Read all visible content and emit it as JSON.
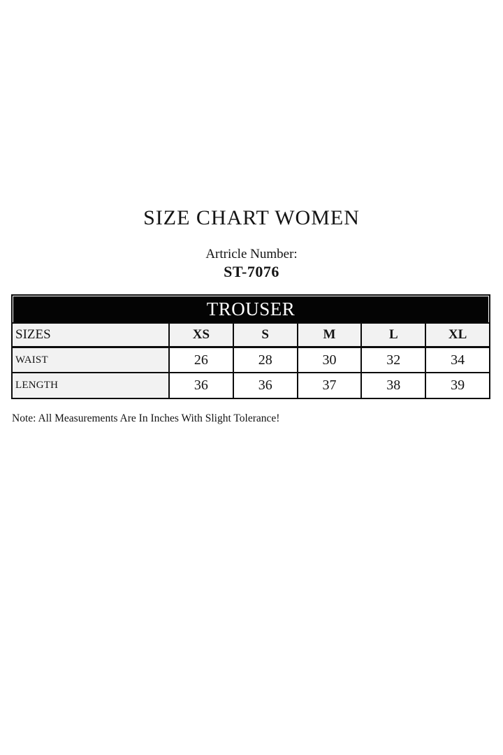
{
  "page": {
    "title": "SIZE CHART WOMEN",
    "article_label": "Artricle Number:",
    "article_number": "ST-7076",
    "note": "Note: All Measurements Are In Inches With Slight Tolerance!"
  },
  "size_chart": {
    "product": "TROUSER",
    "header": [
      "SIZES",
      "XS",
      "S",
      "M",
      "L",
      "XL"
    ],
    "rows": [
      {
        "label": "WAIST",
        "values": [
          "26",
          "28",
          "30",
          "32",
          "34"
        ]
      },
      {
        "label": "LENGTH",
        "values": [
          "36",
          "36",
          "37",
          "38",
          "39"
        ]
      }
    ],
    "units": "inches"
  },
  "colors": {
    "product_bar_bg": "#000000",
    "product_bar_text": "#ffffff",
    "shaded_cell_bg": "#f2f2f2",
    "border": "#0c0c0c"
  }
}
